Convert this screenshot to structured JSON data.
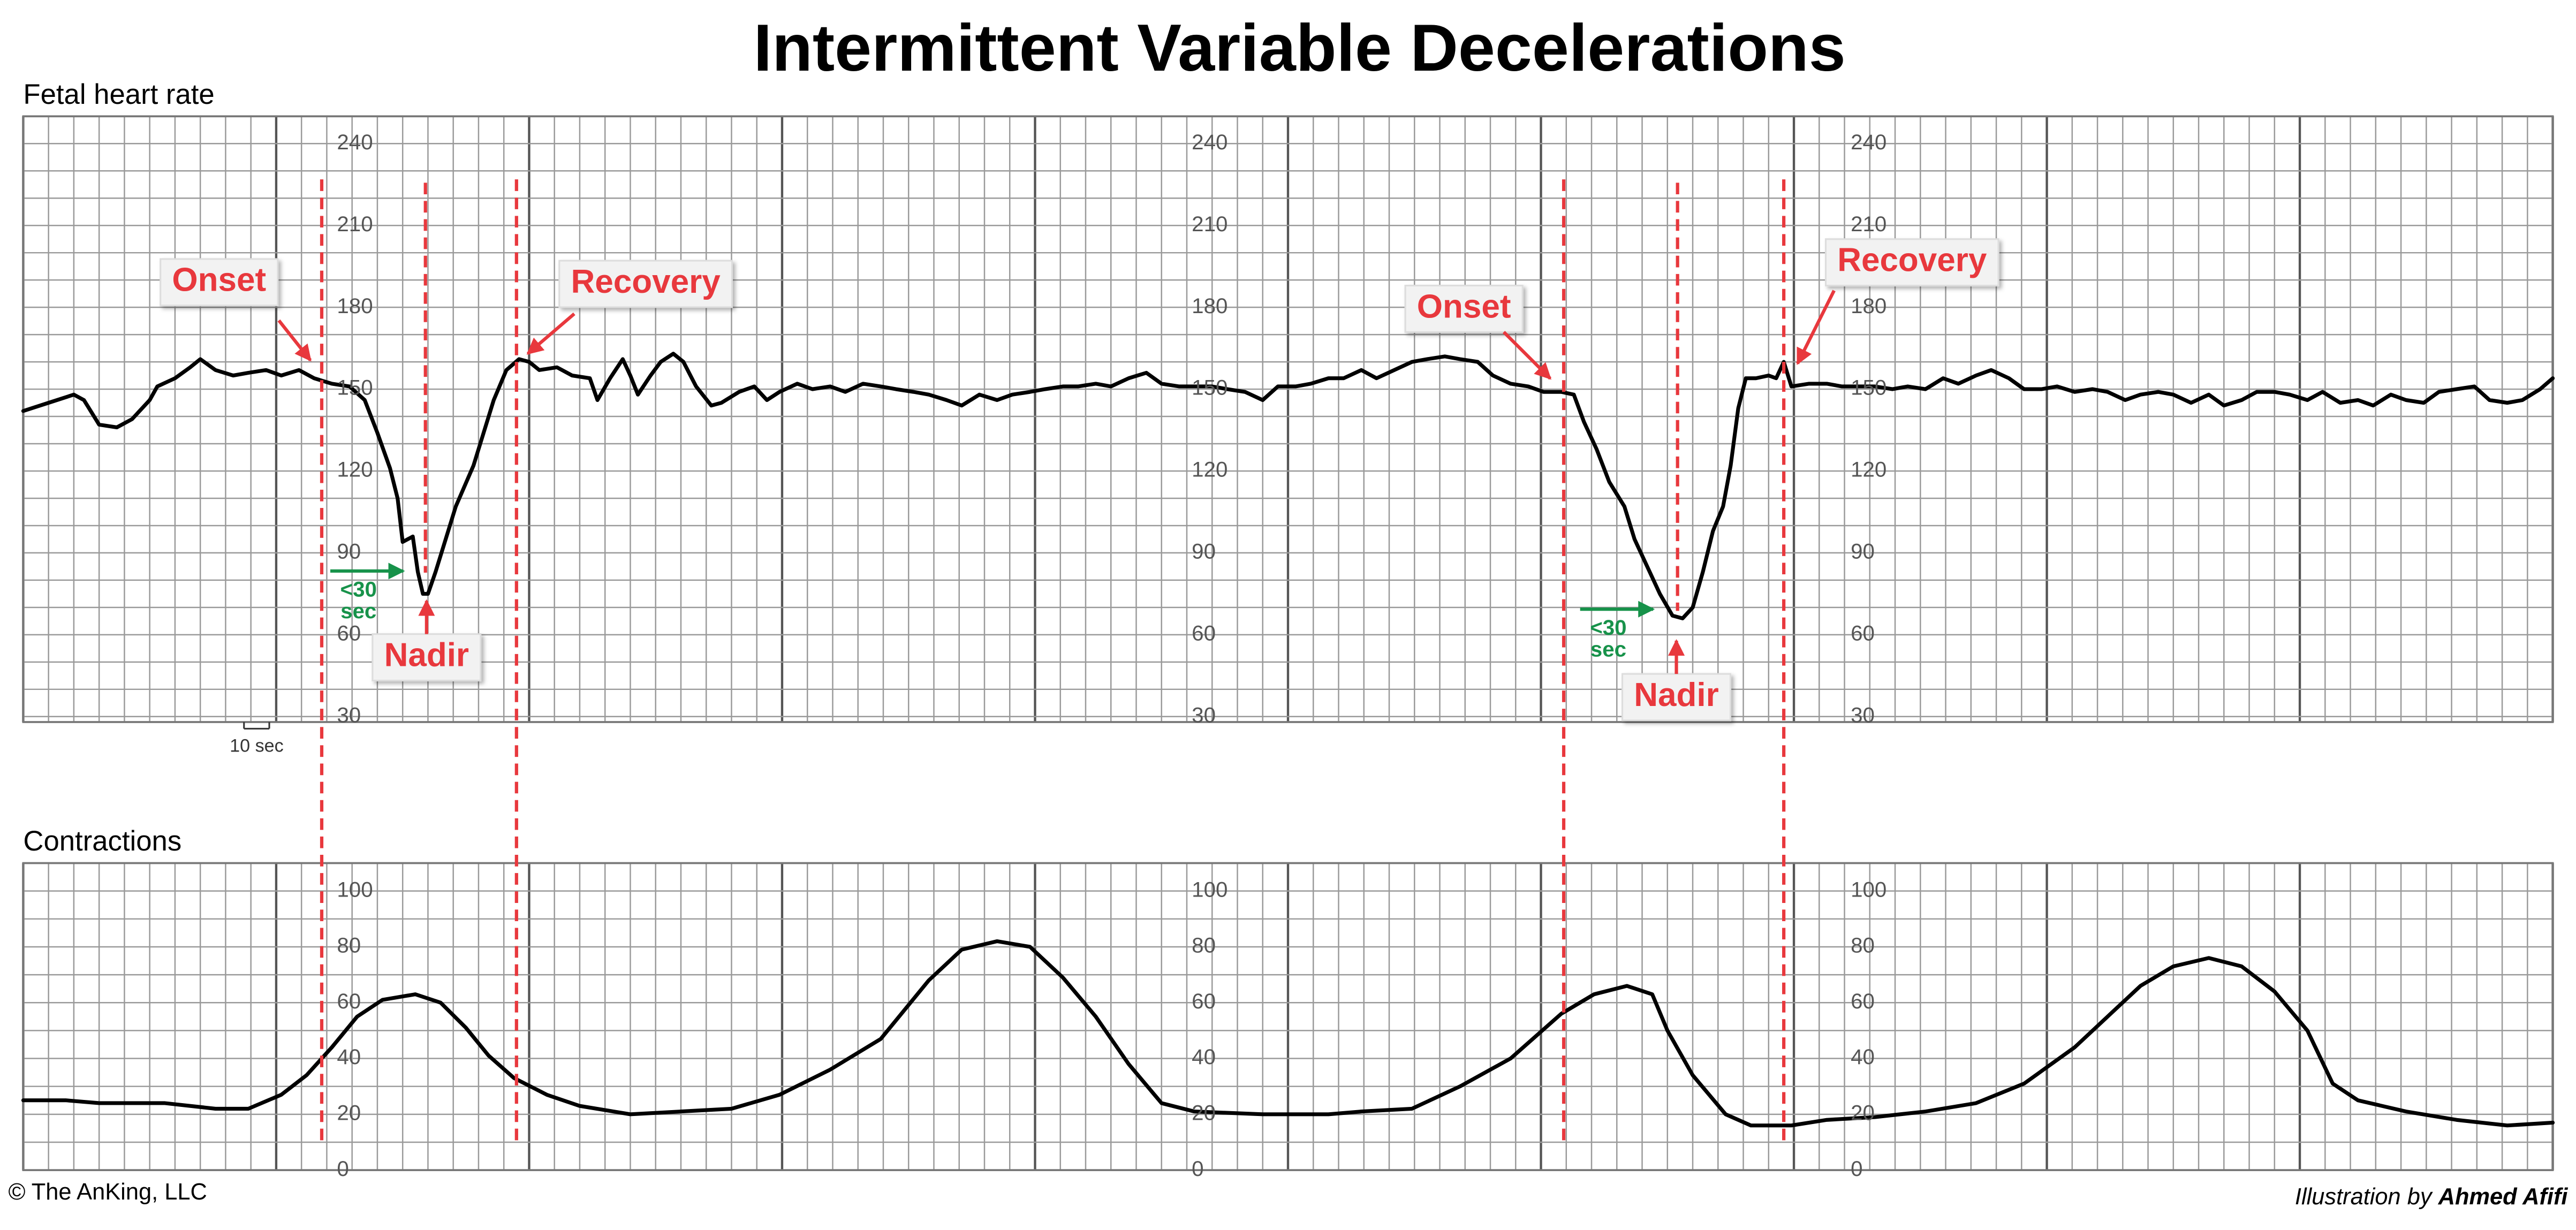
{
  "title": "Intermittent Variable Decelerations",
  "copyright": "© The AnKing, LLC",
  "credit": {
    "prefix": "Illustration by",
    "author": "Ahmed Afifi"
  },
  "chart_data": [
    {
      "type": "line",
      "title": "Fetal heart rate",
      "color": "#000000",
      "xlim": [
        0,
        1000
      ],
      "ylim": [
        28,
        250
      ],
      "yticks": [
        30,
        60,
        90,
        120,
        150,
        180,
        210,
        240
      ],
      "grid": true,
      "scale_bar": {
        "value": 10,
        "label": "10 sec"
      },
      "x": [
        0,
        10,
        20,
        24,
        30,
        37,
        43,
        50,
        53,
        60,
        66,
        70,
        76,
        83,
        89,
        96,
        102,
        109,
        115,
        122,
        129,
        135,
        140,
        145,
        148,
        150,
        154,
        156,
        158,
        160,
        163,
        167,
        171,
        178,
        182,
        186,
        191,
        196,
        200,
        204,
        211,
        217,
        224,
        227,
        232,
        237,
        240,
        243,
        248,
        252,
        257,
        261,
        266,
        272,
        276,
        283,
        289,
        294,
        299,
        306,
        312,
        319,
        325,
        332,
        339,
        345,
        352,
        358,
        365,
        371,
        378,
        385,
        391,
        398,
        404,
        411,
        417,
        424,
        430,
        437,
        444,
        450,
        457,
        463,
        470,
        476,
        483,
        490,
        496,
        503,
        509,
        516,
        522,
        529,
        535,
        542,
        549,
        555,
        562,
        568,
        575,
        581,
        588,
        595,
        601,
        608,
        613,
        617,
        622,
        627,
        633,
        637,
        642,
        647,
        652,
        656,
        660,
        664,
        668,
        672,
        675,
        678,
        681,
        685,
        690,
        693,
        696,
        699,
        706,
        713,
        719,
        726,
        732,
        739,
        745,
        752,
        759,
        765,
        772,
        778,
        785,
        791,
        798,
        804,
        811,
        818,
        824,
        831,
        837,
        844,
        850,
        857,
        864,
        870,
        877,
        883,
        890,
        896,
        903,
        909,
        916,
        923,
        929,
        936,
        942,
        949,
        955,
        962,
        969,
        975,
        982,
        988,
        995,
        1000
      ],
      "values": [
        142,
        145,
        148,
        146,
        137,
        136,
        139,
        146,
        151,
        154,
        158,
        161,
        157,
        155,
        156,
        157,
        155,
        157,
        154,
        152,
        151,
        146,
        134,
        121,
        110,
        94,
        96,
        83,
        75,
        75,
        83,
        95,
        107,
        122,
        134,
        146,
        157,
        161,
        160,
        157,
        158,
        155,
        154,
        146,
        154,
        161,
        155,
        148,
        155,
        160,
        163,
        160,
        151,
        144,
        145,
        149,
        151,
        146,
        149,
        152,
        150,
        151,
        149,
        152,
        151,
        150,
        149,
        148,
        146,
        144,
        148,
        146,
        148,
        149,
        150,
        151,
        151,
        152,
        151,
        154,
        156,
        152,
        151,
        151,
        151,
        150,
        149,
        146,
        151,
        151,
        152,
        154,
        154,
        157,
        154,
        157,
        160,
        161,
        162,
        161,
        160,
        155,
        152,
        151,
        149,
        149,
        148,
        138,
        128,
        116,
        107,
        95,
        85,
        75,
        67,
        66,
        70,
        83,
        98,
        107,
        122,
        143,
        154,
        154,
        155,
        154,
        160,
        151,
        152,
        152,
        151,
        151,
        151,
        150,
        151,
        150,
        154,
        152,
        155,
        157,
        154,
        150,
        150,
        151,
        149,
        150,
        149,
        146,
        148,
        149,
        148,
        145,
        148,
        144,
        146,
        149,
        149,
        148,
        146,
        149,
        145,
        146,
        144,
        148,
        146,
        145,
        149,
        150,
        151,
        146,
        145,
        146,
        150,
        154
      ],
      "annotations": [
        {
          "label": "Onset",
          "x": 118
        },
        {
          "label": "Nadir",
          "x": 159
        },
        {
          "label": "Recovery",
          "x": 195
        },
        {
          "label": "Onset",
          "x": 609
        },
        {
          "label": "Nadir",
          "x": 654
        },
        {
          "label": "Recovery",
          "x": 696
        }
      ],
      "interval_note": [
        "<30",
        "sec"
      ]
    },
    {
      "type": "line",
      "title": "Contractions",
      "color": "#000000",
      "xlim": [
        0,
        1000
      ],
      "ylim": [
        0,
        110
      ],
      "yticks": [
        0,
        20,
        40,
        60,
        80,
        100
      ],
      "grid": true,
      "x": [
        0,
        17,
        30,
        56,
        76,
        89,
        102,
        112,
        122,
        132,
        142,
        155,
        165,
        175,
        184,
        194,
        207,
        220,
        240,
        260,
        280,
        299,
        319,
        339,
        358,
        371,
        385,
        398,
        411,
        424,
        437,
        450,
        463,
        490,
        516,
        529,
        549,
        568,
        588,
        608,
        621,
        634,
        644,
        650,
        660,
        673,
        683,
        699,
        713,
        732,
        752,
        772,
        791,
        811,
        824,
        837,
        850,
        864,
        877,
        890,
        903,
        913,
        923,
        942,
        962,
        982,
        1000
      ],
      "values": [
        25,
        25,
        24,
        24,
        22,
        22,
        27,
        34,
        44,
        55,
        61,
        63,
        60,
        51,
        41,
        33,
        27,
        23,
        20,
        21,
        22,
        27,
        36,
        47,
        68,
        79,
        82,
        80,
        69,
        55,
        38,
        24,
        21,
        20,
        20,
        21,
        22,
        30,
        40,
        56,
        63,
        66,
        63,
        50,
        34,
        20,
        16,
        16,
        18,
        19,
        21,
        24,
        31,
        44,
        55,
        66,
        73,
        76,
        73,
        64,
        50,
        31,
        25,
        21,
        18,
        16,
        17
      ]
    }
  ]
}
